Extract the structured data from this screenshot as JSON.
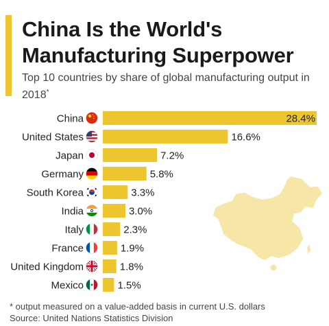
{
  "header": {
    "title": "China Is the World's Manufacturing Superpower",
    "subtitle": "Top 10 countries by share of global manufacturing output in 2018",
    "subtitle_mark": "*"
  },
  "footer": {
    "footnote": "* output measured on a value-added basis in current U.S. dollars",
    "source": "Source: United Nations Statistics Division"
  },
  "colors": {
    "accent": "#ecc52f",
    "bar": "#ecc52f",
    "map_fill": "#f6e6a8",
    "text": "#222222"
  },
  "decoration": {
    "map": "china-map-silhouette"
  },
  "chart_data": {
    "type": "bar",
    "orientation": "horizontal",
    "categories": [
      "China",
      "United States",
      "Japan",
      "Germany",
      "South Korea",
      "India",
      "Italy",
      "France",
      "United Kingdom",
      "Mexico"
    ],
    "flags": [
      "china-flag-icon",
      "us-flag-icon",
      "japan-flag-icon",
      "germany-flag-icon",
      "south-korea-flag-icon",
      "india-flag-icon",
      "italy-flag-icon",
      "france-flag-icon",
      "uk-flag-icon",
      "mexico-flag-icon"
    ],
    "values": [
      28.4,
      16.6,
      7.2,
      5.8,
      3.3,
      3.0,
      2.3,
      1.9,
      1.8,
      1.5
    ],
    "value_labels": [
      "28.4%",
      "16.6%",
      "7.2%",
      "5.8%",
      "3.3%",
      "3.0%",
      "2.3%",
      "1.9%",
      "1.8%",
      "1.5%"
    ],
    "xlim": [
      0,
      28.4
    ],
    "grid": false,
    "legend": "none"
  }
}
